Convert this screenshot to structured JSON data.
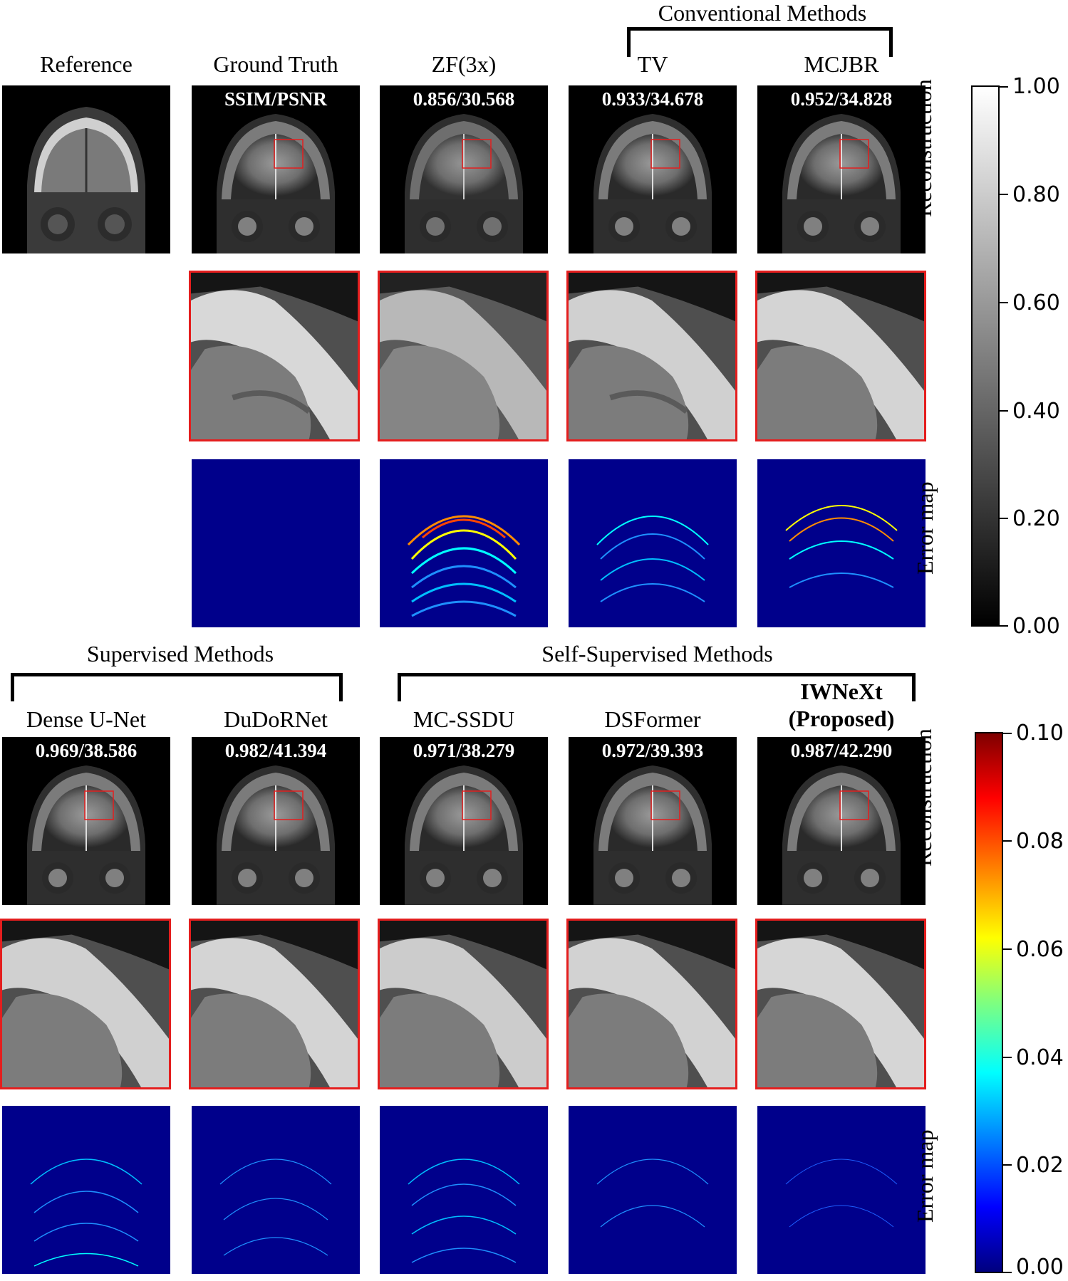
{
  "groups": {
    "conventional": "Conventional Methods",
    "supervised": "Supervised Methods",
    "self_supervised": "Self-Supervised Methods"
  },
  "top": {
    "columns": [
      {
        "title": "Reference",
        "metric": ""
      },
      {
        "title": "Ground Truth",
        "metric": "SSIM/PSNR"
      },
      {
        "title": "ZF(3x)",
        "metric": "0.856/30.568"
      },
      {
        "title": "TV",
        "metric": "0.933/34.678"
      },
      {
        "title": "MCJBR",
        "metric": "0.952/34.828"
      }
    ]
  },
  "bottom": {
    "columns": [
      {
        "title": "Dense U-Net",
        "metric": "0.969/38.586"
      },
      {
        "title": "DuDoRNet",
        "metric": "0.982/41.394"
      },
      {
        "title": "MC-SSDU",
        "metric": "0.971/38.279"
      },
      {
        "title": "DSFormer",
        "metric": "0.972/39.393"
      },
      {
        "title": "IWNeXt",
        "title2": "(Proposed)",
        "metric": "0.987/42.290"
      }
    ]
  },
  "row_labels": {
    "reconstruction": "Reconstruction",
    "error_map": "Error map"
  },
  "colorbar_gray": {
    "ticks": [
      "1.00",
      "0.80",
      "0.60",
      "0.40",
      "0.20",
      "0.00"
    ]
  },
  "colorbar_jet": {
    "ticks": [
      "0.10",
      "0.08",
      "0.06",
      "0.04",
      "0.02",
      "0.00"
    ]
  }
}
